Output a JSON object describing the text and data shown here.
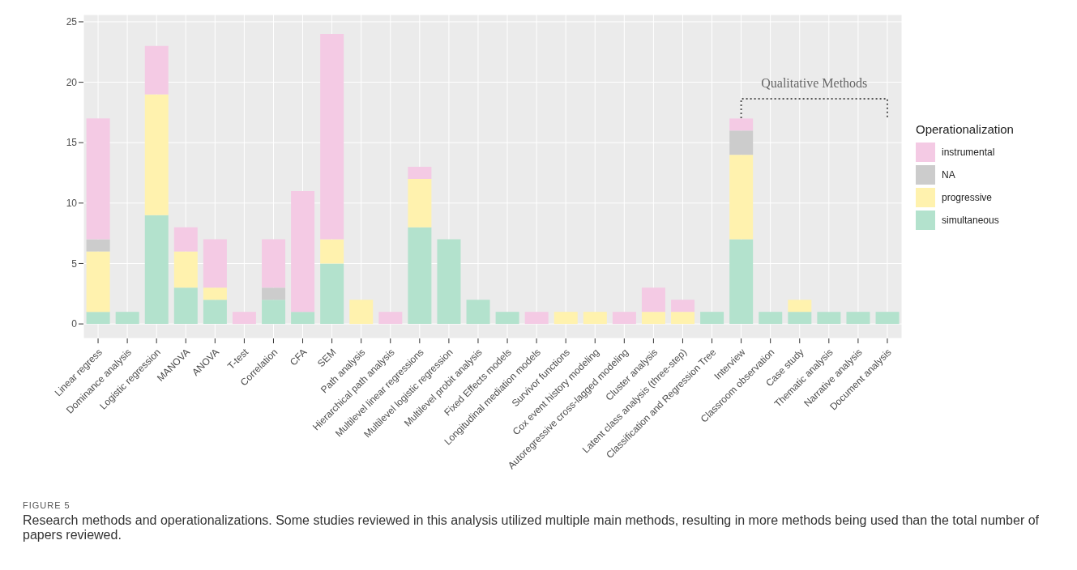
{
  "chart_data": {
    "type": "bar",
    "stacked": true,
    "categories": [
      "Linear regress",
      "Dominance analysis",
      "Logistic regression",
      "MANOVA",
      "ANOVA",
      "T-test",
      "Correlation",
      "CFA",
      "SEM",
      "Path analysis",
      "Hierarchical path analysis",
      "Multilevel linear regressions",
      "Multilevel logistic regression",
      "Multilevel probit analysis",
      "Fixed Effects models",
      "Longitudinal mediation models",
      "Survivor functions",
      "Cox event history modeling",
      "Autoregressive cross-lagged modeling",
      "Cluster analysis",
      "Latent class analysis (three-step)",
      "Classification and Regression Tree",
      "Interview",
      "Classroom observation",
      "Case study",
      "Thematic analysis",
      "Narrative analysis",
      "Document analysis"
    ],
    "series": [
      {
        "name": "simultaneous",
        "color": "#b3e2cd",
        "values": [
          1,
          1,
          9,
          3,
          2,
          null,
          2,
          1,
          5,
          null,
          null,
          8,
          7,
          2,
          1,
          null,
          null,
          null,
          null,
          null,
          null,
          1,
          7,
          1,
          1,
          1,
          1,
          1
        ]
      },
      {
        "name": "progressive",
        "color": "#fff2ae",
        "values": [
          5,
          null,
          10,
          3,
          1,
          null,
          null,
          null,
          2,
          2,
          null,
          4,
          null,
          null,
          null,
          null,
          1,
          1,
          null,
          1,
          1,
          null,
          7,
          null,
          1,
          null,
          null,
          null
        ]
      },
      {
        "name": "NA",
        "color": "#cccccc",
        "values": [
          1,
          null,
          null,
          null,
          null,
          null,
          1,
          null,
          null,
          null,
          null,
          null,
          null,
          null,
          null,
          null,
          null,
          null,
          null,
          null,
          null,
          null,
          2,
          null,
          null,
          null,
          null,
          null
        ]
      },
      {
        "name": "instrumental",
        "color": "#f4cae4",
        "values": [
          10,
          null,
          4,
          2,
          4,
          1,
          4,
          10,
          17,
          null,
          1,
          1,
          null,
          null,
          null,
          1,
          null,
          null,
          1,
          2,
          1,
          null,
          1,
          null,
          null,
          null,
          null,
          null
        ]
      }
    ],
    "ylim": [
      -1.2,
      25.6
    ],
    "yticks": [
      0,
      5,
      10,
      15,
      20,
      25
    ],
    "grid": true,
    "legend": "right",
    "legend_title": "Operationalization",
    "annotations": [
      "Qualitative Methods",
      "FIGURE 5",
      "Research methods and operationalizations. Some studies reviewed in this analysis utilized multiple main methods, resulting in more methods being used than the total number of papers reviewed."
    ]
  }
}
